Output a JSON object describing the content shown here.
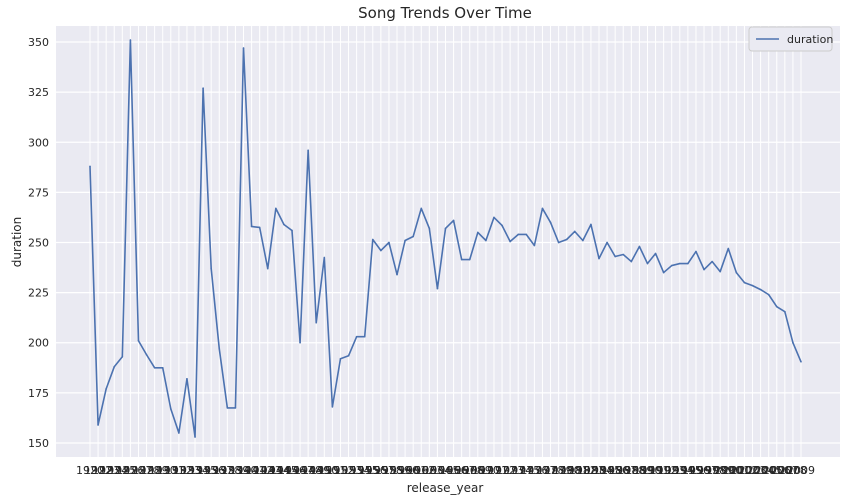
{
  "chart_data": {
    "type": "line",
    "title": "Song Trends Over Time",
    "xlabel": "release_year",
    "ylabel": "duration",
    "ylim": [
      143,
      358
    ],
    "yticks": [
      150,
      175,
      200,
      225,
      250,
      275,
      300,
      325,
      350
    ],
    "grid": true,
    "legend_position": "top-right",
    "colors": {
      "background": "#eaeaf2",
      "grid": "#ffffff",
      "line": "#4c72b0"
    },
    "series": [
      {
        "name": "duration",
        "values": [
          288,
          159,
          177,
          188,
          193,
          351,
          201,
          194,
          187.5,
          187.5,
          167,
          155,
          182,
          153,
          327,
          237,
          197,
          167.5,
          167.5,
          347,
          258,
          257.5,
          237,
          267,
          259,
          256,
          200,
          296,
          210,
          242.5,
          168,
          192,
          193.5,
          203,
          203,
          251.5,
          246,
          250,
          234,
          251,
          253,
          267,
          257,
          227,
          257,
          261,
          241.5,
          241.5,
          255,
          251,
          262.5,
          258.5,
          250.5,
          254,
          254,
          248.5,
          267,
          260,
          250,
          251.5,
          255.5,
          251,
          259,
          242,
          250,
          243,
          244,
          240.5,
          248,
          239.5,
          244.5,
          235,
          238.5,
          239.5,
          239.5,
          245.5,
          236.5,
          240.5,
          235.5,
          247,
          235,
          230,
          228.5,
          226.5,
          224,
          218,
          215.5,
          200,
          190.5
        ]
      }
    ],
    "x_tick_labels": [
      "1920",
      "1922",
      "1923",
      "1924",
      "1925",
      "1926",
      "1927",
      "1928",
      "1929",
      "1930",
      "1931",
      "1932",
      "1933",
      "1934",
      "1935",
      "1936",
      "1937",
      "1938",
      "1939",
      "1940",
      "1941",
      "1942",
      "1943",
      "1944",
      "1945",
      "1946",
      "1947",
      "1948",
      "1949",
      "1950",
      "1951",
      "1952",
      "1953",
      "1954",
      "1955",
      "1956",
      "1957",
      "1958",
      "1959",
      "1960",
      "1961",
      "1962",
      "1963",
      "1964",
      "1965",
      "1966",
      "1967",
      "1968",
      "1969",
      "1970",
      "1971",
      "1972",
      "1973",
      "1974",
      "1975",
      "1976",
      "1977",
      "1978",
      "1979",
      "1980",
      "1981",
      "1982",
      "1983",
      "1984",
      "1985",
      "1986",
      "1987",
      "1988",
      "1989",
      "1990",
      "1991",
      "1992",
      "1993",
      "1994",
      "1995",
      "1996",
      "1997",
      "1998",
      "1999",
      "2000",
      "2001",
      "2002",
      "2003",
      "2004",
      "2005",
      "2006",
      "2007",
      "2008",
      "2009"
    ]
  }
}
